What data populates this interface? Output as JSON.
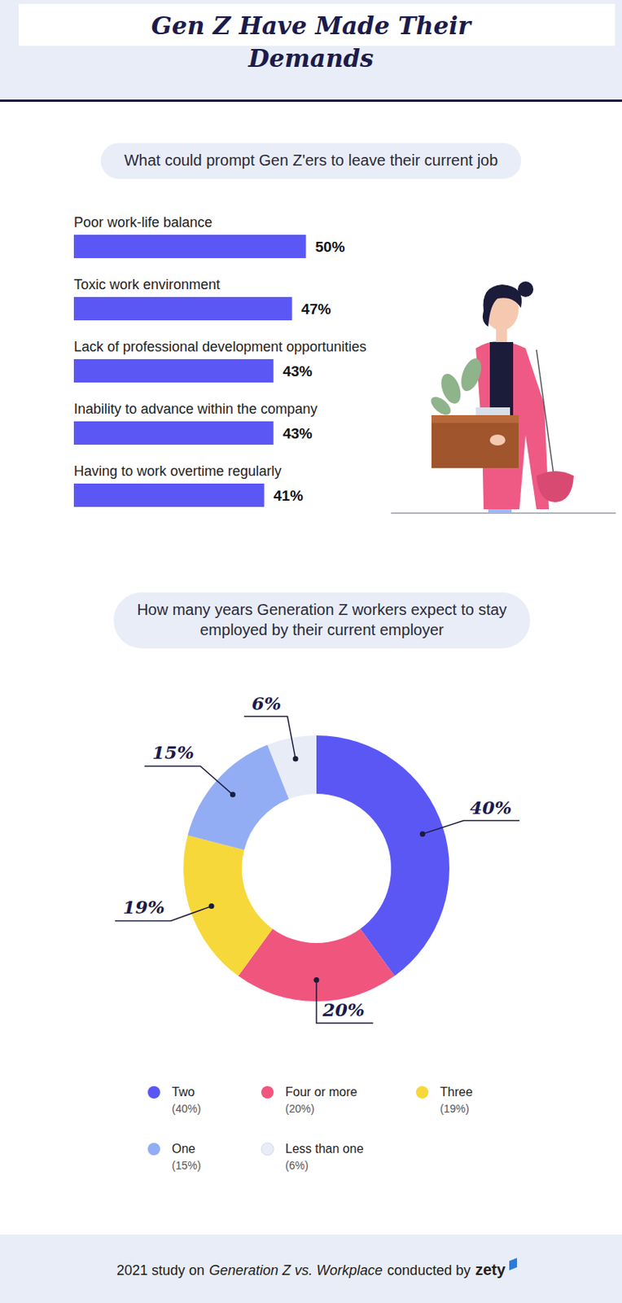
{
  "title": "Gen Z Have Made Their Demands",
  "chart_data": [
    {
      "type": "bar",
      "orientation": "horizontal",
      "title": "What could prompt Gen Z'ers to leave their current job",
      "categories": [
        "Poor work-life balance",
        "Toxic work environment",
        "Lack of professional development opportunities",
        "Inability to advance within the company",
        "Having to work overtime regularly"
      ],
      "values": [
        50,
        47,
        43,
        43,
        41
      ],
      "value_labels": [
        "50%",
        "47%",
        "43%",
        "43%",
        "41%"
      ],
      "color": "#5b57f5",
      "xlim": [
        0,
        100
      ],
      "tick_labels": false,
      "data_labels": true,
      "grid": false
    },
    {
      "type": "pie",
      "title": "How many years Generation Z workers expect to stay employed by their current employer",
      "categories": [
        "Two",
        "Four or more",
        "Three",
        "One",
        "Less than one"
      ],
      "values": [
        40,
        20,
        19,
        15,
        6
      ],
      "value_labels": [
        "40%",
        "20%",
        "19%",
        "15%",
        "6%"
      ],
      "legend_value_labels": [
        "(40%)",
        "(20%)",
        "(19%)",
        "(15%)",
        "(6%)"
      ],
      "colors": [
        "#5b57f5",
        "#f0557e",
        "#f7d83a",
        "#93adf5",
        "#e8ecf7"
      ],
      "data_labels": true,
      "legend": "bottom"
    }
  ],
  "footer": {
    "text": "2021 study on",
    "study": "Generation Z vs. Workplace",
    "after": "conducted by",
    "brand": "zety"
  }
}
